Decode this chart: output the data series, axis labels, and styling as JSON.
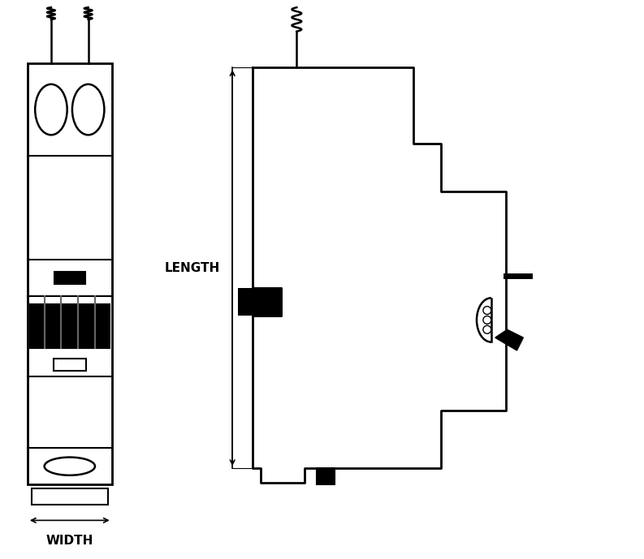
{
  "background_color": "#ffffff",
  "line_color": "#000000",
  "line_width": 1.8,
  "figsize": [
    7.93,
    6.89
  ],
  "dpi": 100,
  "width_label": "WIDTH",
  "length_label": "LENGTH"
}
